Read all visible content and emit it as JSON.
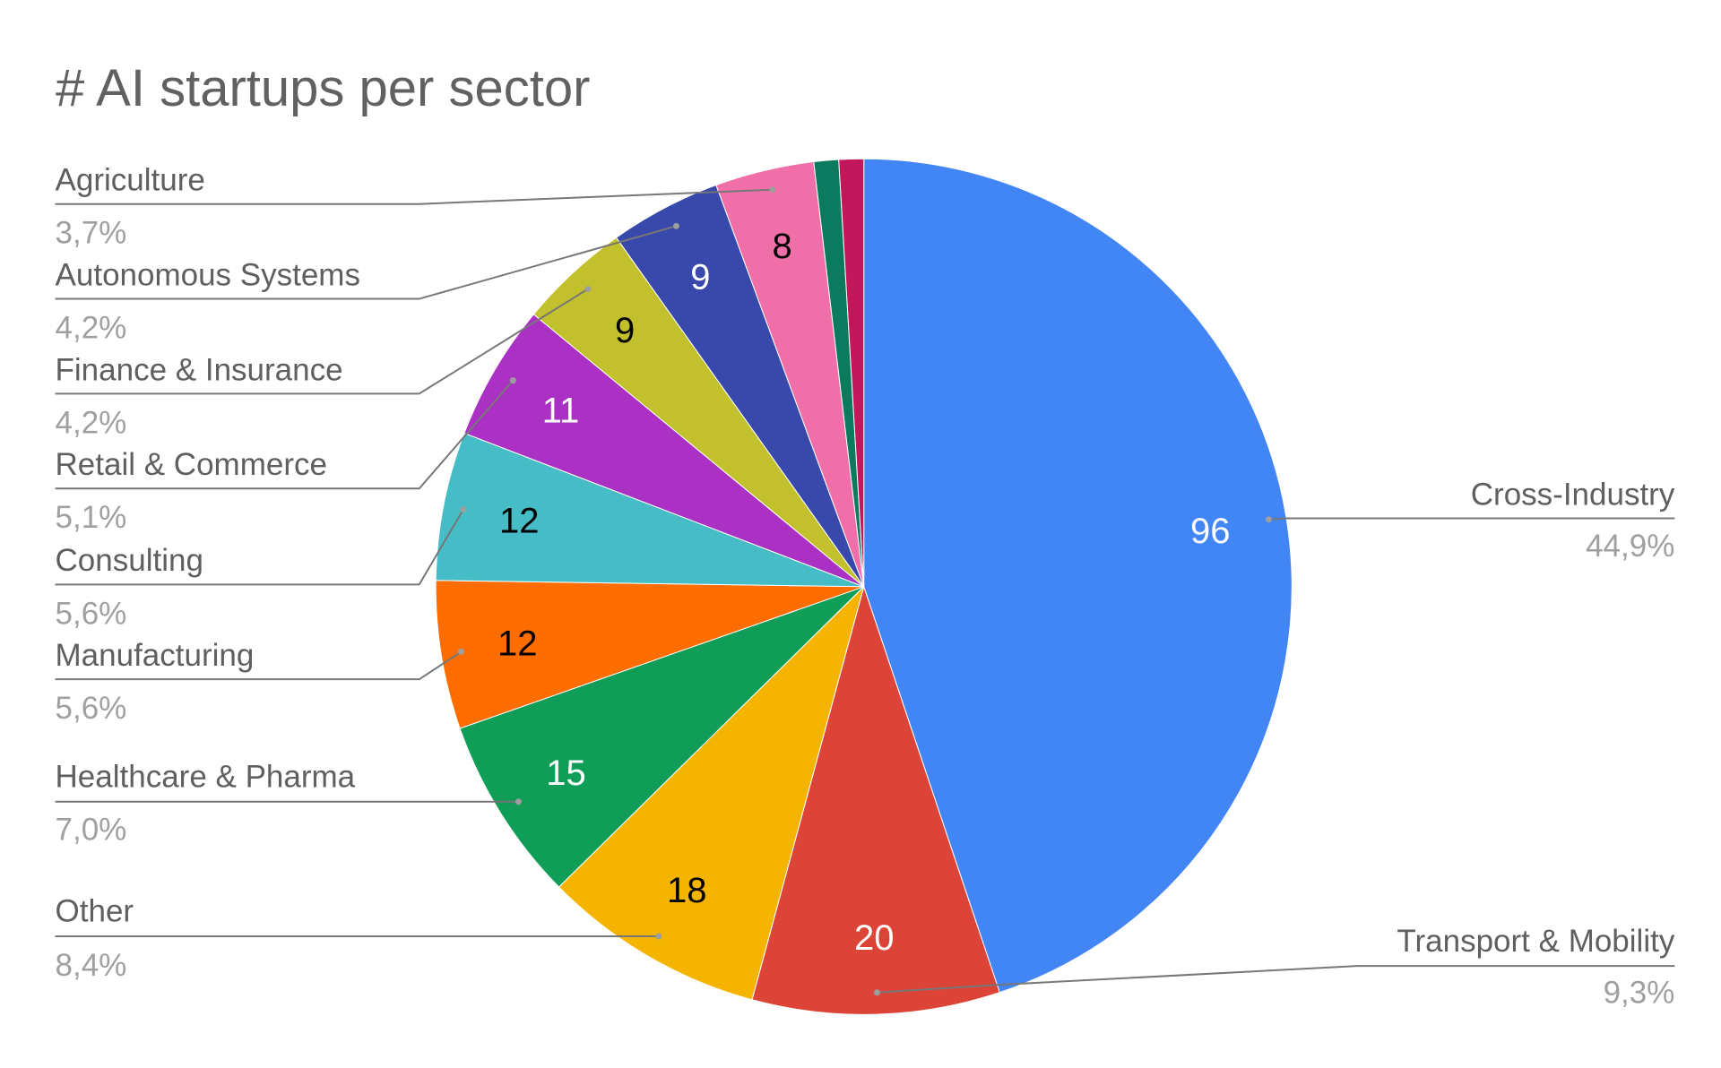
{
  "chart_data": {
    "type": "pie",
    "title": "# AI startups per sector",
    "slices": [
      {
        "label": "Cross-Industry",
        "value": 96,
        "percent": "44,9%",
        "color": "#4285f4",
        "label_color": "#ffffff"
      },
      {
        "label": "Transport & Mobility",
        "value": 20,
        "percent": "9,3%",
        "color": "#db4437",
        "label_color": "#ffffff"
      },
      {
        "label": "Other",
        "value": 18,
        "percent": "8,4%",
        "color": "#f4b400",
        "label_color": "#000000"
      },
      {
        "label": "Healthcare & Pharma",
        "value": 15,
        "percent": "7,0%",
        "color": "#0f9d58",
        "label_color": "#ffffff"
      },
      {
        "label": "Manufacturing",
        "value": 12,
        "percent": "5,6%",
        "color": "#ff6d01",
        "label_color": "#000000"
      },
      {
        "label": "Consulting",
        "value": 12,
        "percent": "5,6%",
        "color": "#46bdc6",
        "label_color": "#000000"
      },
      {
        "label": "Retail & Commerce",
        "value": 11,
        "percent": "5,1%",
        "color": "#ab30c4",
        "label_color": "#ffffff"
      },
      {
        "label": "Finance & Insurance",
        "value": 9,
        "percent": "4,2%",
        "color": "#c2c02c",
        "label_color": "#000000"
      },
      {
        "label": "Autonomous Systems",
        "value": 9,
        "percent": "4,2%",
        "color": "#3949ab",
        "label_color": "#ffffff"
      },
      {
        "label": "Agriculture",
        "value": 8,
        "percent": "3,7%",
        "color": "#f06fa9",
        "label_color": "#000000"
      },
      {
        "label": "",
        "value": 2,
        "percent": "",
        "color": "#0b7a5f",
        "label_color": "#ffffff"
      },
      {
        "label": "",
        "value": 2,
        "percent": "",
        "color": "#c2185b",
        "label_color": "#ffffff"
      }
    ],
    "legend": "leader-line labels (left and right)"
  }
}
